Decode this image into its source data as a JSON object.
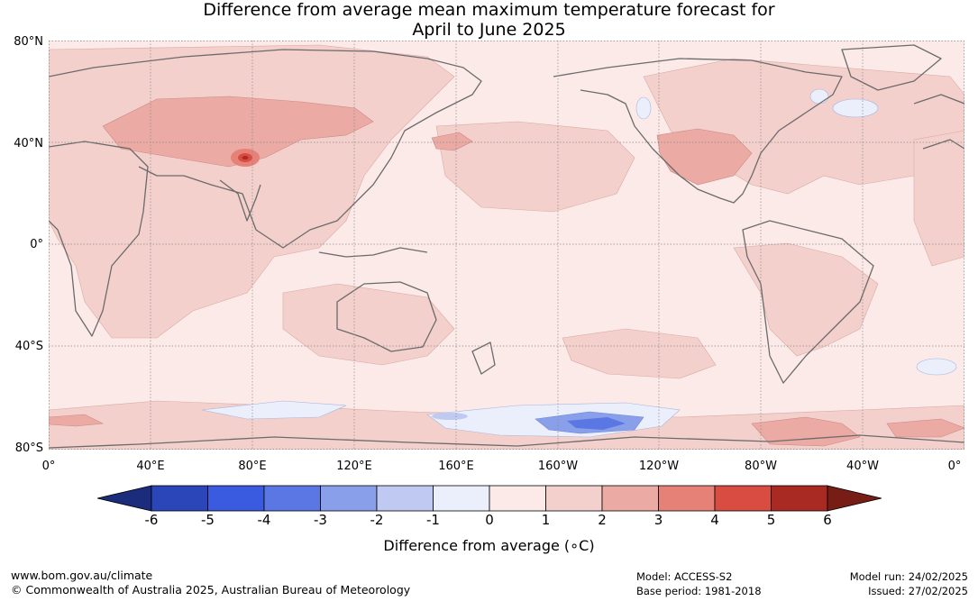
{
  "title": {
    "line1": "Difference from average mean maximum temperature forecast for",
    "line2": "April to June 2025"
  },
  "map": {
    "lat_labels": [
      "80°N",
      "40°N",
      "0°",
      "40°S",
      "80°S"
    ],
    "lon_labels": [
      "0°",
      "40°E",
      "80°E",
      "120°E",
      "160°E",
      "160°W",
      "120°W",
      "80°W",
      "40°W",
      "0°"
    ],
    "colors": {
      "ocean_base": "#fbeae8",
      "land_outline": "#6b6b6b",
      "grid": "#888888"
    }
  },
  "colorbar": {
    "ticks": [
      "-6",
      "-5",
      "-4",
      "-3",
      "-2",
      "-1",
      "0",
      "1",
      "2",
      "3",
      "4",
      "5",
      "6"
    ],
    "colors": [
      "#1c2c7c",
      "#2b46b8",
      "#3a5be0",
      "#5b77e3",
      "#8a9fe9",
      "#c0c9f1",
      "#ebeffb",
      "#fbeae8",
      "#f4d0cc",
      "#ebaaa3",
      "#e68178",
      "#d84c42",
      "#a82a22",
      "#781c16"
    ],
    "label": "Difference from average (∘C)"
  },
  "footer": {
    "url": "www.bom.gov.au/climate",
    "copyright": "© Commonwealth of Australia 2025, Australian Bureau of Meteorology",
    "model": "Model: ACCESS-S2",
    "base_period": "Base period: 1981-2018",
    "model_run": "Model run: 24/02/2025",
    "issued": "Issued: 27/02/2025"
  }
}
